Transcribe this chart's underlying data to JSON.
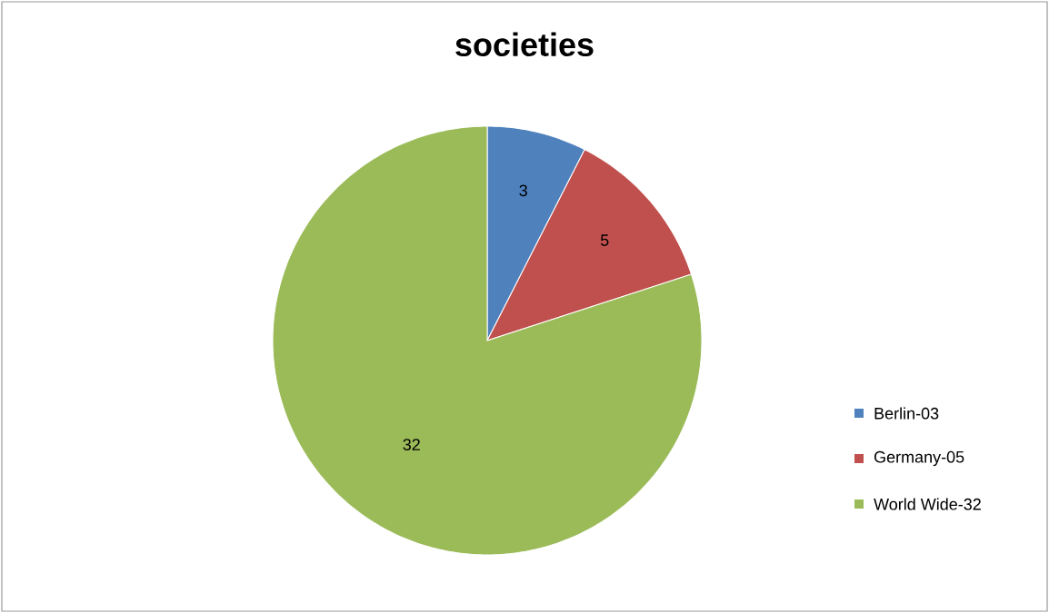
{
  "chart_data": {
    "type": "pie",
    "title": "societies",
    "categories": [
      "Berlin-03",
      "Germany-05",
      "World Wide-32"
    ],
    "values": [
      3,
      5,
      32
    ],
    "colors": [
      "#4f81bd",
      "#c0504d",
      "#9bbb59"
    ],
    "data_labels": true,
    "legend": "right"
  }
}
